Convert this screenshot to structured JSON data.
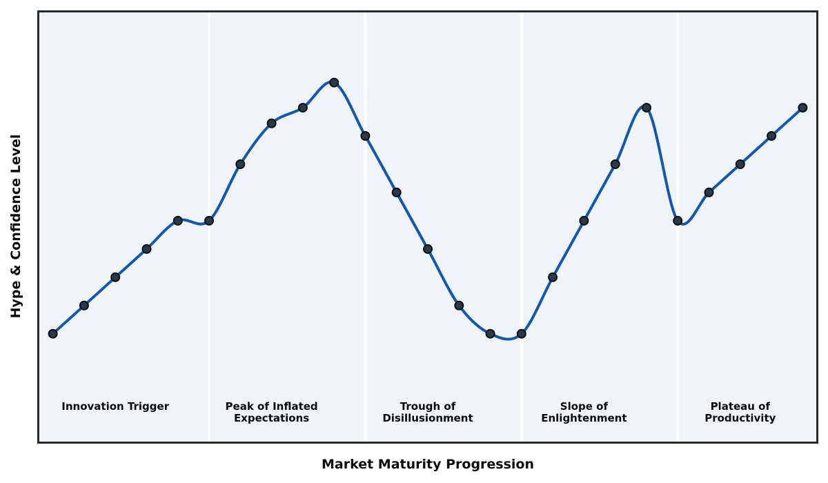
{
  "figure": {
    "xlabel": "Market Maturity Progression",
    "ylabel": "Hype & Confidence Level"
  },
  "chart_data": {
    "type": "line",
    "title": "",
    "xlabel": "Market Maturity Progression",
    "ylabel": "Hype & Confidence Level",
    "x": [
      1,
      2,
      3,
      4,
      5,
      6,
      7,
      8,
      9,
      10,
      11,
      12,
      13,
      14,
      15,
      16,
      17,
      18,
      19,
      20,
      21,
      22,
      23,
      24,
      25
    ],
    "values": [
      10,
      19,
      28,
      37,
      46,
      46,
      64,
      77,
      82,
      90,
      73,
      55,
      37,
      19,
      10,
      10,
      28,
      46,
      64,
      82,
      46,
      55,
      64,
      73,
      82
    ],
    "xlim": [
      0.5,
      25.5
    ],
    "ylim": [
      -25,
      113
    ],
    "grid": false,
    "smooth_spline": true,
    "phase_bands": [
      {
        "label_lines": [
          "Innovation Trigger"
        ],
        "x_start": 0.5,
        "x_end": 6,
        "label_x": 3
      },
      {
        "label_lines": [
          "Peak of Inflated",
          "Expectations"
        ],
        "x_start": 6,
        "x_end": 11,
        "label_x": 8
      },
      {
        "label_lines": [
          "Trough of",
          "Disillusionment"
        ],
        "x_start": 11,
        "x_end": 16,
        "label_x": 13
      },
      {
        "label_lines": [
          "Slope of",
          "Enlightenment"
        ],
        "x_start": 16,
        "x_end": 21,
        "label_x": 18
      },
      {
        "label_lines": [
          "Plateau of",
          "Productivity"
        ],
        "x_start": 21,
        "x_end": 25.5,
        "label_x": 23
      }
    ],
    "colors": {
      "line": "#1158ae",
      "marker_fill": "#2b3a47",
      "marker_edge": "#0d1117",
      "plot_bg": "#f0f4f8",
      "divider": "#ffffff",
      "border": "#25282e",
      "page_bg": "#ffffff",
      "text": "#0b0b0b"
    }
  }
}
